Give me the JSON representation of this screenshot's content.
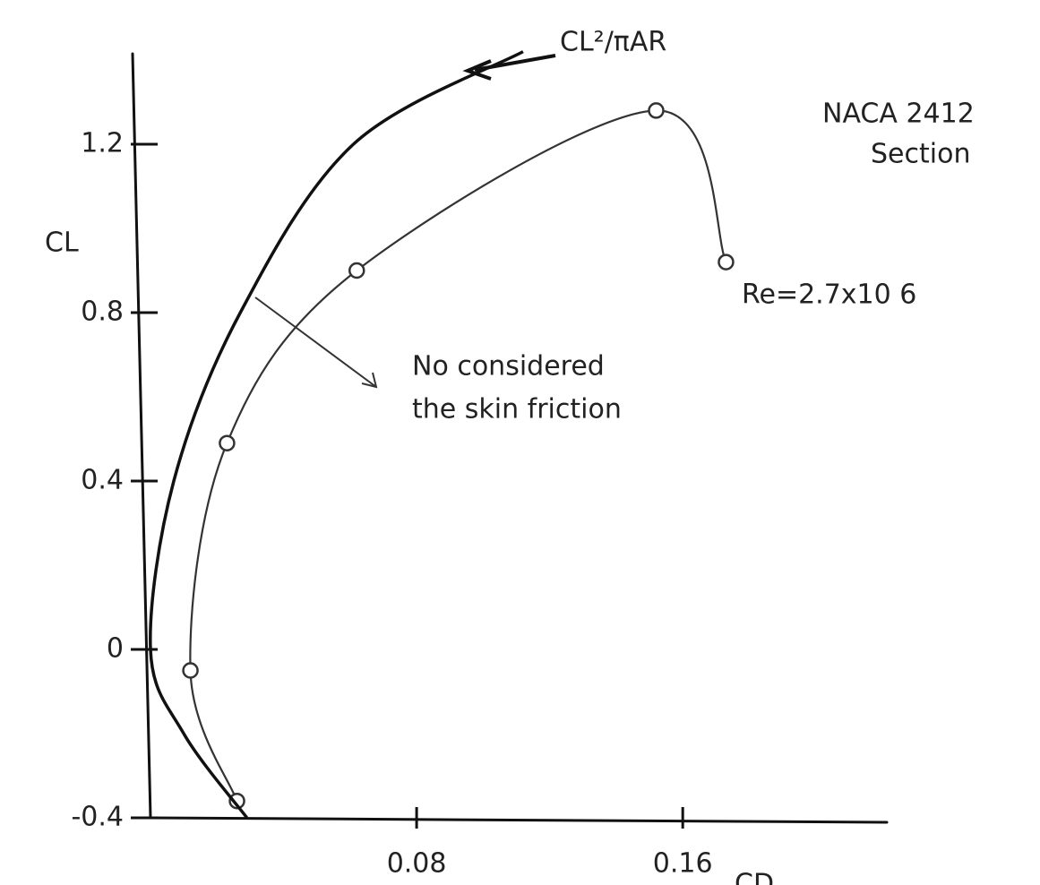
{
  "chart_data": {
    "type": "line",
    "y_label": "CL",
    "x_label": "CD",
    "annotations": [
      "CL²/πAR",
      "NACA 2412",
      "Section",
      "Re=2.7x10 6",
      "No considered",
      "the skin friction"
    ],
    "xlim": [
      0,
      0.22
    ],
    "ylim": [
      -0.4,
      1.5
    ],
    "xticks": [
      0.08,
      0.16
    ],
    "yticks": [
      -0.4,
      0,
      0.4,
      0.8,
      1.2
    ],
    "series": [
      {
        "color": "#333333",
        "markers": true,
        "x": [
          0.026,
          0.012,
          0.023,
          0.062,
          0.152,
          0.173
        ],
        "values": [
          -0.36,
          -0.05,
          0.49,
          0.9,
          1.28,
          0.92
        ]
      },
      {
        "color": "#111111",
        "markers": false,
        "x": [
          0.029,
          0.01,
          0,
          0.007,
          0.027,
          0.061,
          0.112
        ],
        "values": [
          -0.4,
          -0.2,
          0,
          0.4,
          0.8,
          1.2,
          1.42
        ]
      }
    ]
  }
}
